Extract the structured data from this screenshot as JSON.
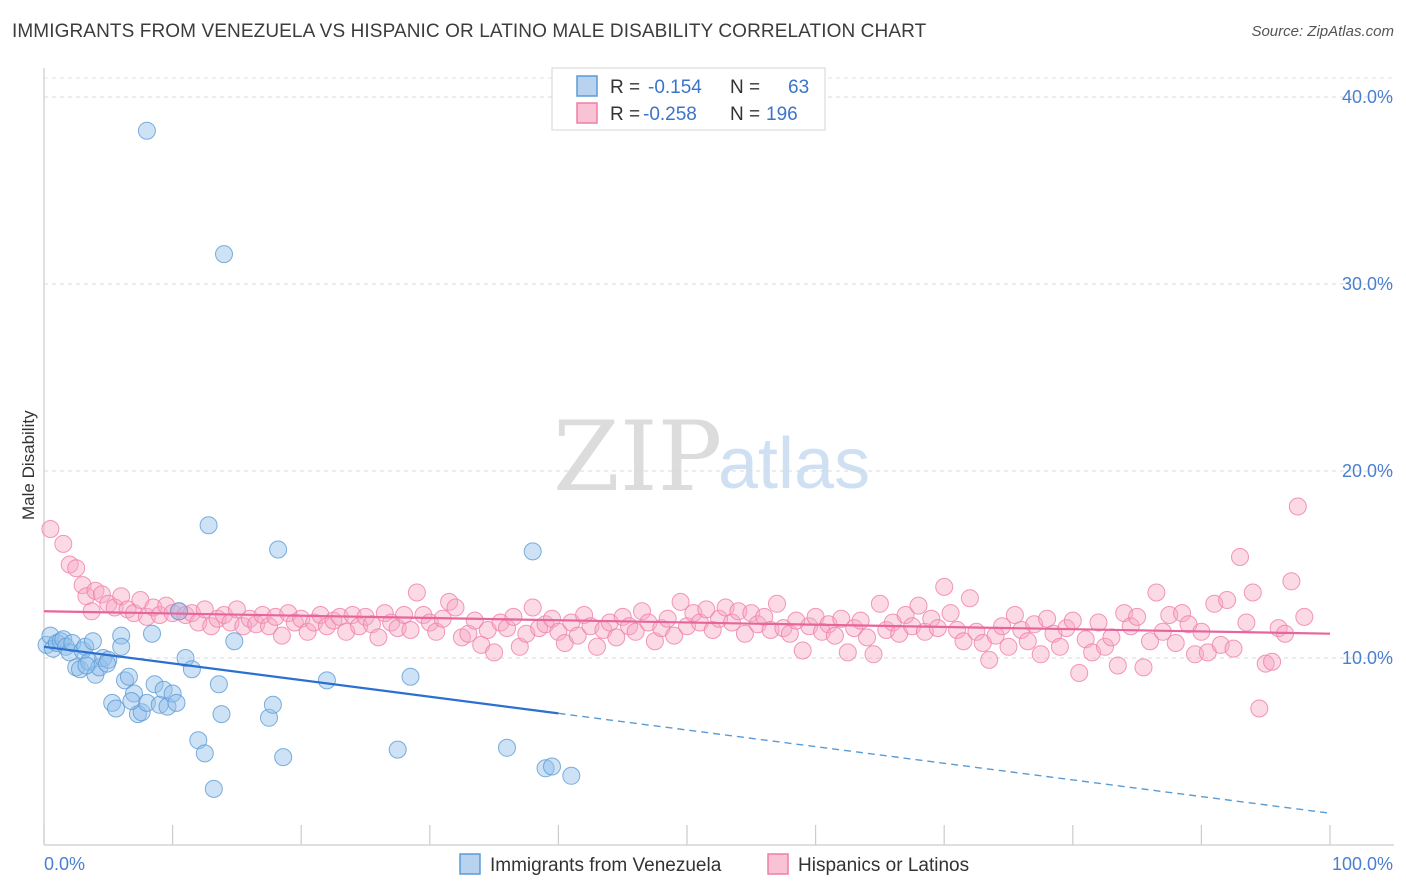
{
  "title": "IMMIGRANTS FROM VENEZUELA VS HISPANIC OR LATINO MALE DISABILITY CORRELATION CHART",
  "source": "Source: ZipAtlas.com",
  "watermark": {
    "zip": "ZIP",
    "atlas": "atlas"
  },
  "stats": {
    "r_label": "R =",
    "n_label": "N =",
    "rows": [
      {
        "r": "-0.154",
        "n": "63",
        "color": "#5b9bd5"
      },
      {
        "r": "-0.258",
        "n": "196",
        "color": "#f07ea6"
      }
    ]
  },
  "chart_data": {
    "type": "scatter",
    "title": "IMMIGRANTS FROM VENEZUELA VS HISPANIC OR LATINO MALE DISABILITY CORRELATION CHART",
    "xlabel": "",
    "ylabel": "Male Disability",
    "xlim": [
      0,
      100
    ],
    "ylim": [
      0,
      40
    ],
    "x_tick_labels": [
      "0.0%",
      "100.0%"
    ],
    "y_ticks": [
      10,
      20,
      30,
      40
    ],
    "y_tick_labels": [
      "10.0%",
      "20.0%",
      "30.0%",
      "40.0%"
    ],
    "grid": true,
    "legend_position": "bottom",
    "series": [
      {
        "name": "Immigrants from Venezuela",
        "color": "#5b9bd5",
        "trend": {
          "x0": 0,
          "y0": 10.6,
          "x1": 100,
          "y1": 1.7,
          "solid_until": 40
        },
        "points": [
          [
            0.2,
            10.7
          ],
          [
            0.5,
            11.2
          ],
          [
            0.7,
            10.5
          ],
          [
            1,
            10.8
          ],
          [
            1.3,
            10.9
          ],
          [
            1.5,
            11
          ],
          [
            1.7,
            10.6
          ],
          [
            2,
            10.3
          ],
          [
            2.2,
            10.8
          ],
          [
            2.5,
            9.5
          ],
          [
            2.8,
            9.4
          ],
          [
            3,
            10.4
          ],
          [
            3.2,
            10.6
          ],
          [
            3.5,
            9.8
          ],
          [
            3.8,
            10.9
          ],
          [
            4,
            9.1
          ],
          [
            4.3,
            9.5
          ],
          [
            4.6,
            10
          ],
          [
            5,
            9.9
          ],
          [
            5.3,
            7.6
          ],
          [
            5.6,
            7.3
          ],
          [
            6,
            11.2
          ],
          [
            6,
            10.6
          ],
          [
            6.3,
            8.8
          ],
          [
            6.6,
            9
          ],
          [
            7,
            8.1
          ],
          [
            7.3,
            7
          ],
          [
            7.6,
            7.1
          ],
          [
            8,
            7.6
          ],
          [
            8.4,
            11.3
          ],
          [
            8.6,
            8.6
          ],
          [
            9,
            7.5
          ],
          [
            9.3,
            8.3
          ],
          [
            9.6,
            7.4
          ],
          [
            10,
            8.1
          ],
          [
            10.3,
            7.6
          ],
          [
            8,
            38.2
          ],
          [
            10.5,
            12.5
          ],
          [
            11,
            10
          ],
          [
            11.5,
            9.4
          ],
          [
            12,
            5.6
          ],
          [
            12.5,
            4.9
          ],
          [
            12.8,
            17.1
          ],
          [
            13.2,
            3
          ],
          [
            13.6,
            8.6
          ],
          [
            13.8,
            7
          ],
          [
            14,
            31.6
          ],
          [
            14.8,
            10.9
          ],
          [
            17.5,
            6.8
          ],
          [
            17.8,
            7.5
          ],
          [
            18.2,
            15.8
          ],
          [
            18.6,
            4.7
          ],
          [
            22,
            8.8
          ],
          [
            27.5,
            5.1
          ],
          [
            28.5,
            9
          ],
          [
            36,
            5.2
          ],
          [
            39,
            4.1
          ],
          [
            39.5,
            4.2
          ],
          [
            41,
            3.7
          ],
          [
            38,
            15.7
          ],
          [
            3.3,
            9.6
          ],
          [
            4.9,
            9.7
          ],
          [
            6.8,
            7.7
          ]
        ]
      },
      {
        "name": "Hispanics or Latinos",
        "color": "#f07ea6",
        "trend": {
          "x0": 0,
          "y0": 12.5,
          "x1": 100,
          "y1": 11.3
        },
        "points": [
          [
            0.5,
            16.9
          ],
          [
            1.5,
            16.1
          ],
          [
            2,
            15
          ],
          [
            2.5,
            14.8
          ],
          [
            3,
            13.9
          ],
          [
            3.3,
            13.3
          ],
          [
            3.7,
            12.5
          ],
          [
            4,
            13.6
          ],
          [
            4.5,
            13.4
          ],
          [
            5,
            12.9
          ],
          [
            5.5,
            12.7
          ],
          [
            6,
            13.3
          ],
          [
            6.5,
            12.6
          ],
          [
            7,
            12.4
          ],
          [
            7.5,
            13.1
          ],
          [
            8,
            12.2
          ],
          [
            8.5,
            12.7
          ],
          [
            9,
            12.3
          ],
          [
            9.5,
            12.8
          ],
          [
            10,
            12.4
          ],
          [
            10.5,
            12.5
          ],
          [
            11,
            12.3
          ],
          [
            11.5,
            12.4
          ],
          [
            12,
            11.9
          ],
          [
            12.5,
            12.6
          ],
          [
            13,
            11.7
          ],
          [
            13.5,
            12.1
          ],
          [
            14,
            12.3
          ],
          [
            14.5,
            11.9
          ],
          [
            15,
            12.6
          ],
          [
            15.5,
            11.7
          ],
          [
            16,
            12.1
          ],
          [
            16.5,
            11.8
          ],
          [
            17,
            12.3
          ],
          [
            17.5,
            11.7
          ],
          [
            18,
            12.2
          ],
          [
            18.5,
            11.2
          ],
          [
            19,
            12.4
          ],
          [
            19.5,
            11.9
          ],
          [
            20,
            12.1
          ],
          [
            20.5,
            11.4
          ],
          [
            21,
            11.9
          ],
          [
            21.5,
            12.3
          ],
          [
            22,
            11.7
          ],
          [
            22.5,
            12
          ],
          [
            23,
            12.2
          ],
          [
            23.5,
            11.4
          ],
          [
            24,
            12.3
          ],
          [
            24.5,
            11.7
          ],
          [
            25,
            12.2
          ],
          [
            25.5,
            11.8
          ],
          [
            26,
            11.1
          ],
          [
            26.5,
            12.4
          ],
          [
            27,
            11.9
          ],
          [
            27.5,
            11.6
          ],
          [
            28,
            12.3
          ],
          [
            28.5,
            11.5
          ],
          [
            29,
            13.5
          ],
          [
            29.5,
            12.3
          ],
          [
            30,
            11.9
          ],
          [
            30.5,
            11.4
          ],
          [
            31,
            12.1
          ],
          [
            31.5,
            13
          ],
          [
            32,
            12.7
          ],
          [
            32.5,
            11.1
          ],
          [
            33,
            11.3
          ],
          [
            33.5,
            12
          ],
          [
            34,
            10.7
          ],
          [
            34.5,
            11.5
          ],
          [
            35,
            10.3
          ],
          [
            35.5,
            11.9
          ],
          [
            36,
            11.6
          ],
          [
            36.5,
            12.2
          ],
          [
            37,
            10.6
          ],
          [
            37.5,
            11.3
          ],
          [
            38,
            12.7
          ],
          [
            38.5,
            11.6
          ],
          [
            39,
            11.8
          ],
          [
            39.5,
            12.1
          ],
          [
            40,
            11.4
          ],
          [
            40.5,
            10.8
          ],
          [
            41,
            11.9
          ],
          [
            41.5,
            11.2
          ],
          [
            42,
            12.3
          ],
          [
            42.5,
            11.7
          ],
          [
            43,
            10.6
          ],
          [
            43.5,
            11.5
          ],
          [
            44,
            11.9
          ],
          [
            44.5,
            11.1
          ],
          [
            45,
            12.2
          ],
          [
            45.5,
            11.7
          ],
          [
            46,
            11.4
          ],
          [
            46.5,
            12.5
          ],
          [
            47,
            11.9
          ],
          [
            47.5,
            10.9
          ],
          [
            48,
            11.6
          ],
          [
            48.5,
            12.1
          ],
          [
            49,
            11.2
          ],
          [
            49.5,
            13
          ],
          [
            50,
            11.7
          ],
          [
            50.5,
            12.4
          ],
          [
            51,
            11.9
          ],
          [
            51.5,
            12.6
          ],
          [
            52,
            11.5
          ],
          [
            52.5,
            12.1
          ],
          [
            53,
            12.7
          ],
          [
            53.5,
            11.9
          ],
          [
            54,
            12.5
          ],
          [
            54.5,
            11.3
          ],
          [
            55,
            12.4
          ],
          [
            55.5,
            11.8
          ],
          [
            56,
            12.2
          ],
          [
            56.5,
            11.5
          ],
          [
            57,
            12.9
          ],
          [
            57.5,
            11.6
          ],
          [
            58,
            11.3
          ],
          [
            58.5,
            12
          ],
          [
            59,
            10.4
          ],
          [
            59.5,
            11.7
          ],
          [
            60,
            12.2
          ],
          [
            60.5,
            11.4
          ],
          [
            61,
            11.8
          ],
          [
            61.5,
            11.2
          ],
          [
            62,
            12.1
          ],
          [
            62.5,
            10.3
          ],
          [
            63,
            11.6
          ],
          [
            63.5,
            12
          ],
          [
            64,
            11.1
          ],
          [
            64.5,
            10.2
          ],
          [
            65,
            12.9
          ],
          [
            65.5,
            11.5
          ],
          [
            66,
            11.9
          ],
          [
            66.5,
            11.3
          ],
          [
            67,
            12.3
          ],
          [
            67.5,
            11.7
          ],
          [
            68,
            12.8
          ],
          [
            68.5,
            11.4
          ],
          [
            69,
            12.1
          ],
          [
            69.5,
            11.6
          ],
          [
            70,
            13.8
          ],
          [
            70.5,
            12.4
          ],
          [
            71,
            11.5
          ],
          [
            71.5,
            10.9
          ],
          [
            72,
            13.2
          ],
          [
            72.5,
            11.4
          ],
          [
            73,
            10.8
          ],
          [
            73.5,
            9.9
          ],
          [
            74,
            11.2
          ],
          [
            74.5,
            11.7
          ],
          [
            75,
            10.6
          ],
          [
            75.5,
            12.3
          ],
          [
            76,
            11.5
          ],
          [
            76.5,
            10.9
          ],
          [
            77,
            11.8
          ],
          [
            77.5,
            10.2
          ],
          [
            78,
            12.1
          ],
          [
            78.5,
            11.3
          ],
          [
            79,
            10.6
          ],
          [
            79.5,
            11.6
          ],
          [
            80,
            12
          ],
          [
            80.5,
            9.2
          ],
          [
            81,
            11
          ],
          [
            81.5,
            10.3
          ],
          [
            82,
            11.9
          ],
          [
            82.5,
            10.6
          ],
          [
            83,
            11.1
          ],
          [
            83.5,
            9.6
          ],
          [
            84,
            12.4
          ],
          [
            84.5,
            11.7
          ],
          [
            85,
            12.2
          ],
          [
            85.5,
            9.5
          ],
          [
            86,
            10.9
          ],
          [
            86.5,
            13.5
          ],
          [
            87,
            11.4
          ],
          [
            87.5,
            12.3
          ],
          [
            88,
            10.8
          ],
          [
            88.5,
            12.4
          ],
          [
            89,
            11.8
          ],
          [
            89.5,
            10.2
          ],
          [
            90,
            11.4
          ],
          [
            90.5,
            10.3
          ],
          [
            91,
            12.9
          ],
          [
            91.5,
            10.7
          ],
          [
            92,
            13.1
          ],
          [
            92.5,
            10.5
          ],
          [
            93,
            15.4
          ],
          [
            93.5,
            11.9
          ],
          [
            94,
            13.5
          ],
          [
            94.5,
            7.3
          ],
          [
            95,
            9.7
          ],
          [
            95.5,
            9.8
          ],
          [
            96,
            11.6
          ],
          [
            96.5,
            11.3
          ],
          [
            97,
            14.1
          ],
          [
            97.5,
            18.1
          ],
          [
            98,
            12.2
          ]
        ]
      }
    ]
  },
  "legend": {
    "items": [
      {
        "label": "Immigrants from Venezuela",
        "color": "#5b9bd5"
      },
      {
        "label": "Hispanics or Latinos",
        "color": "#f07ea6"
      }
    ]
  }
}
